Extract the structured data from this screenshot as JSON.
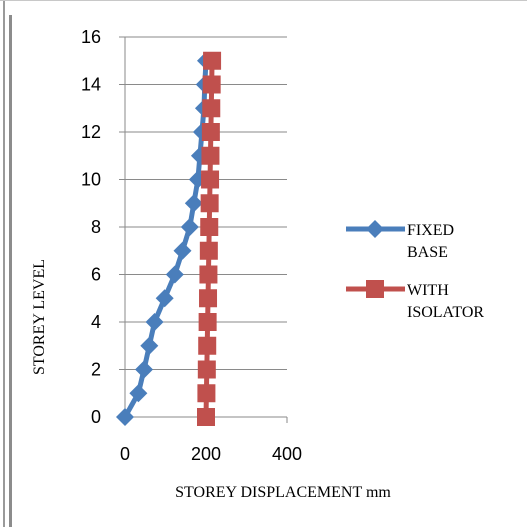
{
  "chart_data": {
    "type": "line",
    "xlabel": "STOREY DISPLACEMENT mm",
    "ylabel": "STOREY LEVEL",
    "xlim": [
      0,
      400
    ],
    "ylim": [
      0,
      16
    ],
    "xticks": [
      "0",
      "200",
      "400"
    ],
    "yticks": [
      "0",
      "2",
      "4",
      "6",
      "8",
      "10",
      "12",
      "14",
      "16"
    ],
    "grid": "horizontal",
    "legend": "right",
    "x": [
      0,
      1,
      2,
      3,
      4,
      5,
      6,
      7,
      8,
      9,
      10,
      11,
      12,
      13,
      14,
      15
    ],
    "series": [
      {
        "name_lines": [
          "FIXED",
          "BASE"
        ],
        "color": "#4a7ebb",
        "marker": "diamond",
        "displacement": [
          0,
          33,
          47,
          60,
          73,
          98,
          123,
          142,
          160,
          170,
          180,
          185,
          190,
          195,
          197,
          200
        ]
      },
      {
        "name_lines": [
          "WITH",
          "ISOLATOR"
        ],
        "color": "#c0504d",
        "marker": "square",
        "displacement": [
          200,
          201,
          202,
          203,
          204,
          205,
          206,
          207,
          208,
          209,
          210,
          211,
          212,
          213,
          214,
          215
        ]
      }
    ]
  }
}
